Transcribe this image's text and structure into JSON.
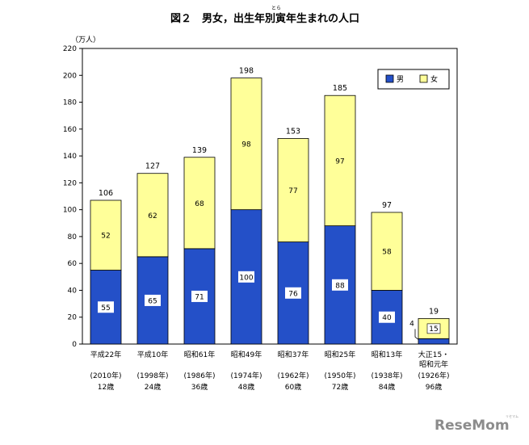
{
  "chart_data": {
    "type": "bar",
    "stacked": true,
    "title": "図２　男女，出生年別寅年生まれの人口",
    "title_ruby": "とら",
    "ylabel": "（万人）",
    "ylim": [
      0,
      220
    ],
    "yticks": [
      0,
      20,
      40,
      60,
      80,
      100,
      120,
      140,
      160,
      180,
      200,
      220
    ],
    "grid": false,
    "legend": {
      "placement": "top-right"
    },
    "categories": [
      {
        "line1": "平成22年",
        "line2": "",
        "line3": "(2010年)",
        "line4": "12歳"
      },
      {
        "line1": "平成10年",
        "line2": "",
        "line3": "(1998年)",
        "line4": "24歳"
      },
      {
        "line1": "昭和61年",
        "line2": "",
        "line3": "(1986年)",
        "line4": "36歳"
      },
      {
        "line1": "昭和49年",
        "line2": "",
        "line3": "(1974年)",
        "line4": "48歳"
      },
      {
        "line1": "昭和37年",
        "line2": "",
        "line3": "(1962年)",
        "line4": "60歳"
      },
      {
        "line1": "昭和25年",
        "line2": "",
        "line3": "(1950年)",
        "line4": "72歳"
      },
      {
        "line1": "昭和13年",
        "line2": "",
        "line3": "(1938年)",
        "line4": "84歳"
      },
      {
        "line1": "大正15・",
        "line2": "昭和元年",
        "line3": "(1926年)",
        "line4": "96歳"
      }
    ],
    "series": [
      {
        "name": "男",
        "color": "#2450c8",
        "values": [
          55,
          65,
          71,
          100,
          76,
          88,
          40,
          4
        ]
      },
      {
        "name": "女",
        "color": "#ffff99",
        "values": [
          52,
          62,
          68,
          98,
          77,
          97,
          58,
          15
        ]
      }
    ],
    "totals": [
      106,
      127,
      139,
      198,
      153,
      185,
      97,
      19
    ]
  },
  "watermark": {
    "text": "ReseMom",
    "subtext": "リセマム"
  }
}
